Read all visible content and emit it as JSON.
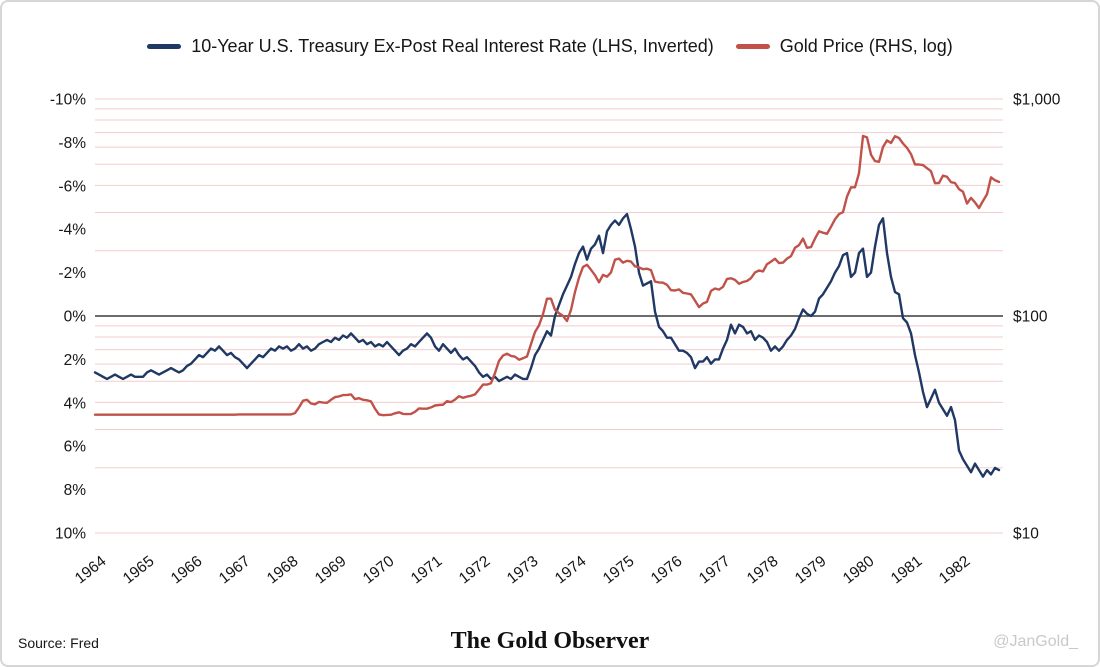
{
  "legend": [
    {
      "label": "10-Year U.S. Treasury Ex-Post Real Interest Rate (LHS, Inverted)",
      "color": "#1f3864"
    },
    {
      "label": "Gold Price (RHS, log)",
      "color": "#c0524a"
    }
  ],
  "footer": {
    "source": "Source: Fred",
    "brand": "The Gold Observer",
    "handle": "@JanGold_"
  },
  "chart_data": {
    "type": "line",
    "title": "",
    "frequency": "monthly",
    "x_start_year": 1964,
    "x_tick_labels": [
      "1964",
      "1965",
      "1966",
      "1967",
      "1968",
      "1969",
      "1970",
      "1971",
      "1972",
      "1973",
      "1974",
      "1975",
      "1976",
      "1977",
      "1978",
      "1979",
      "1980",
      "1981",
      "1982"
    ],
    "left_axis": {
      "inverted": true,
      "range": [
        -10,
        10
      ],
      "ticks": [
        "-10%",
        "-8%",
        "-6%",
        "-4%",
        "-2%",
        "0%",
        "2%",
        "4%",
        "6%",
        "8%",
        "10%"
      ],
      "tick_values": [
        -10,
        -8,
        -6,
        -4,
        -2,
        0,
        2,
        4,
        6,
        8,
        10
      ]
    },
    "right_axis": {
      "scale": "log",
      "range": [
        10,
        1000
      ],
      "ticks": [
        "$1,000",
        "$100",
        "$10"
      ],
      "tick_values": [
        1000,
        100,
        10
      ]
    },
    "gridline_values": [
      10,
      20,
      30,
      40,
      50,
      60,
      70,
      80,
      90,
      200,
      300,
      400,
      500,
      600,
      700,
      800,
      900,
      1000
    ],
    "grid_color": "#f3cdcd",
    "zero_line_color": "#3a3a3a",
    "series": [
      {
        "id": "real-rate",
        "name": "10-Year U.S. Treasury Ex-Post Real Interest Rate (LHS, Inverted)",
        "axis": "left",
        "unit": "percent",
        "color": "#1f3864",
        "values": [
          2.6,
          2.7,
          2.8,
          2.9,
          2.8,
          2.7,
          2.8,
          2.9,
          2.8,
          2.7,
          2.8,
          2.8,
          2.8,
          2.6,
          2.5,
          2.6,
          2.7,
          2.6,
          2.5,
          2.4,
          2.5,
          2.6,
          2.5,
          2.3,
          2.2,
          2.0,
          1.8,
          1.9,
          1.7,
          1.5,
          1.6,
          1.4,
          1.6,
          1.8,
          1.7,
          1.9,
          2.0,
          2.2,
          2.4,
          2.2,
          2.0,
          1.8,
          1.9,
          1.7,
          1.5,
          1.6,
          1.4,
          1.5,
          1.4,
          1.6,
          1.5,
          1.3,
          1.5,
          1.4,
          1.6,
          1.5,
          1.3,
          1.2,
          1.1,
          1.2,
          1.0,
          1.1,
          0.9,
          1.0,
          0.8,
          1.0,
          1.2,
          1.1,
          1.3,
          1.2,
          1.4,
          1.3,
          1.4,
          1.2,
          1.4,
          1.6,
          1.8,
          1.6,
          1.5,
          1.3,
          1.4,
          1.2,
          1.0,
          0.8,
          1.0,
          1.4,
          1.6,
          1.3,
          1.5,
          1.7,
          1.5,
          1.8,
          2.0,
          1.9,
          2.1,
          2.3,
          2.6,
          2.8,
          2.7,
          2.9,
          2.8,
          3.0,
          2.9,
          2.8,
          2.9,
          2.7,
          2.8,
          2.9,
          2.9,
          2.4,
          1.8,
          1.5,
          1.1,
          0.7,
          0.9,
          0.0,
          -0.5,
          -1.0,
          -1.4,
          -1.8,
          -2.4,
          -2.9,
          -3.2,
          -2.6,
          -3.1,
          -3.3,
          -3.7,
          -2.9,
          -3.9,
          -4.2,
          -4.4,
          -4.2,
          -4.5,
          -4.7,
          -4.0,
          -3.2,
          -2.0,
          -1.4,
          -1.5,
          -1.6,
          -0.2,
          0.5,
          0.7,
          1.0,
          1.0,
          1.3,
          1.6,
          1.6,
          1.7,
          1.9,
          2.4,
          2.1,
          2.1,
          1.9,
          2.2,
          2.0,
          2.0,
          1.5,
          1.1,
          0.4,
          0.8,
          0.4,
          0.5,
          0.8,
          0.7,
          1.1,
          0.9,
          1.0,
          1.2,
          1.6,
          1.4,
          1.6,
          1.4,
          1.1,
          0.9,
          0.6,
          0.1,
          -0.3,
          -0.1,
          0.0,
          -0.2,
          -0.8,
          -1.0,
          -1.3,
          -1.6,
          -2.0,
          -2.3,
          -2.8,
          -2.9,
          -1.8,
          -2.0,
          -2.9,
          -3.1,
          -1.8,
          -2.0,
          -3.2,
          -4.2,
          -4.5,
          -2.9,
          -1.8,
          -1.1,
          -1.0,
          0.1,
          0.3,
          0.8,
          1.8,
          2.6,
          3.5,
          4.2,
          3.8,
          3.4,
          4.0,
          4.3,
          4.6,
          4.2,
          4.8,
          6.2,
          6.6,
          6.9,
          7.2,
          6.8,
          7.1,
          7.4,
          7.1,
          7.3,
          7.0,
          7.1
        ]
      },
      {
        "id": "gold-price",
        "name": "Gold Price (RHS, log)",
        "axis": "right",
        "unit": "usd",
        "color": "#c0524a",
        "values": [
          35.1,
          35.1,
          35.1,
          35.1,
          35.1,
          35.1,
          35.1,
          35.1,
          35.1,
          35.1,
          35.1,
          35.1,
          35.1,
          35.1,
          35.1,
          35.1,
          35.1,
          35.1,
          35.1,
          35.1,
          35.1,
          35.1,
          35.1,
          35.1,
          35.1,
          35.1,
          35.1,
          35.1,
          35.1,
          35.1,
          35.1,
          35.1,
          35.1,
          35.1,
          35.1,
          35.1,
          35.2,
          35.2,
          35.2,
          35.2,
          35.2,
          35.2,
          35.2,
          35.2,
          35.2,
          35.2,
          35.2,
          35.2,
          35.2,
          35.2,
          35.7,
          37.9,
          40.7,
          41.1,
          39.5,
          39.2,
          40.2,
          39.9,
          39.8,
          41.1,
          42.3,
          42.6,
          43.2,
          43.3,
          43.5,
          41.4,
          41.8,
          41.1,
          40.9,
          40.4,
          37.4,
          35.2,
          34.9,
          35.0,
          35.1,
          35.6,
          36.0,
          35.4,
          35.3,
          35.4,
          36.2,
          37.5,
          37.4,
          37.4,
          37.9,
          38.7,
          38.9,
          39.0,
          40.5,
          40.1,
          41.2,
          42.7,
          42.0,
          42.5,
          42.9,
          43.5,
          45.8,
          48.3,
          48.3,
          49.0,
          54.6,
          62.1,
          65.7,
          67.0,
          65.5,
          64.9,
          62.9,
          63.9,
          65.1,
          74.2,
          84.4,
          90.5,
          102.0,
          120.1,
          120.2,
          106.8,
          103.0,
          100.1,
          94.8,
          106.7,
          129.2,
          150.2,
          168.4,
          172.2,
          163.3,
          154.1,
          143.0,
          154.6,
          151.8,
          158.8,
          181.7,
          183.9,
          176.3,
          179.7,
          178.2,
          169.5,
          167.4,
          164.3,
          165.1,
          162.8,
          144.1,
          142.8,
          142.4,
          139.3,
          131.5,
          131.1,
          132.6,
          127.9,
          126.9,
          125.7,
          117.8,
          109.9,
          114.2,
          116.1,
          130.5,
          133.9,
          132.3,
          136.3,
          148.2,
          149.2,
          146.6,
          140.8,
          143.4,
          144.9,
          149.5,
          158.9,
          162.1,
          160.5,
          173.2,
          178.2,
          183.7,
          175.3,
          176.3,
          183.8,
          188.9,
          206.3,
          212.1,
          227.4,
          206.1,
          207.8,
          227.3,
          245.7,
          242.0,
          239.2,
          257.6,
          279.1,
          294.7,
          300.8,
          355.1,
          391.7,
          392.0,
          455.1,
          675.3,
          665.3,
          553.6,
          517.4,
          513.8,
          600.7,
          644.3,
          627.1,
          673.6,
          661.1,
          623.5,
          594.9,
          557.4,
          499.8,
          498.8,
          495.8,
          479.7,
          464.8,
          409.3,
          410.2,
          443.6,
          437.8,
          413.4,
          410.1,
          384.4,
          374.1,
          330.0,
          350.3,
          333.8,
          314.5,
          339.0,
          364.2,
          435.8,
          422.2,
          414.9
        ]
      }
    ],
    "legend_position": "top",
    "grid": true
  }
}
